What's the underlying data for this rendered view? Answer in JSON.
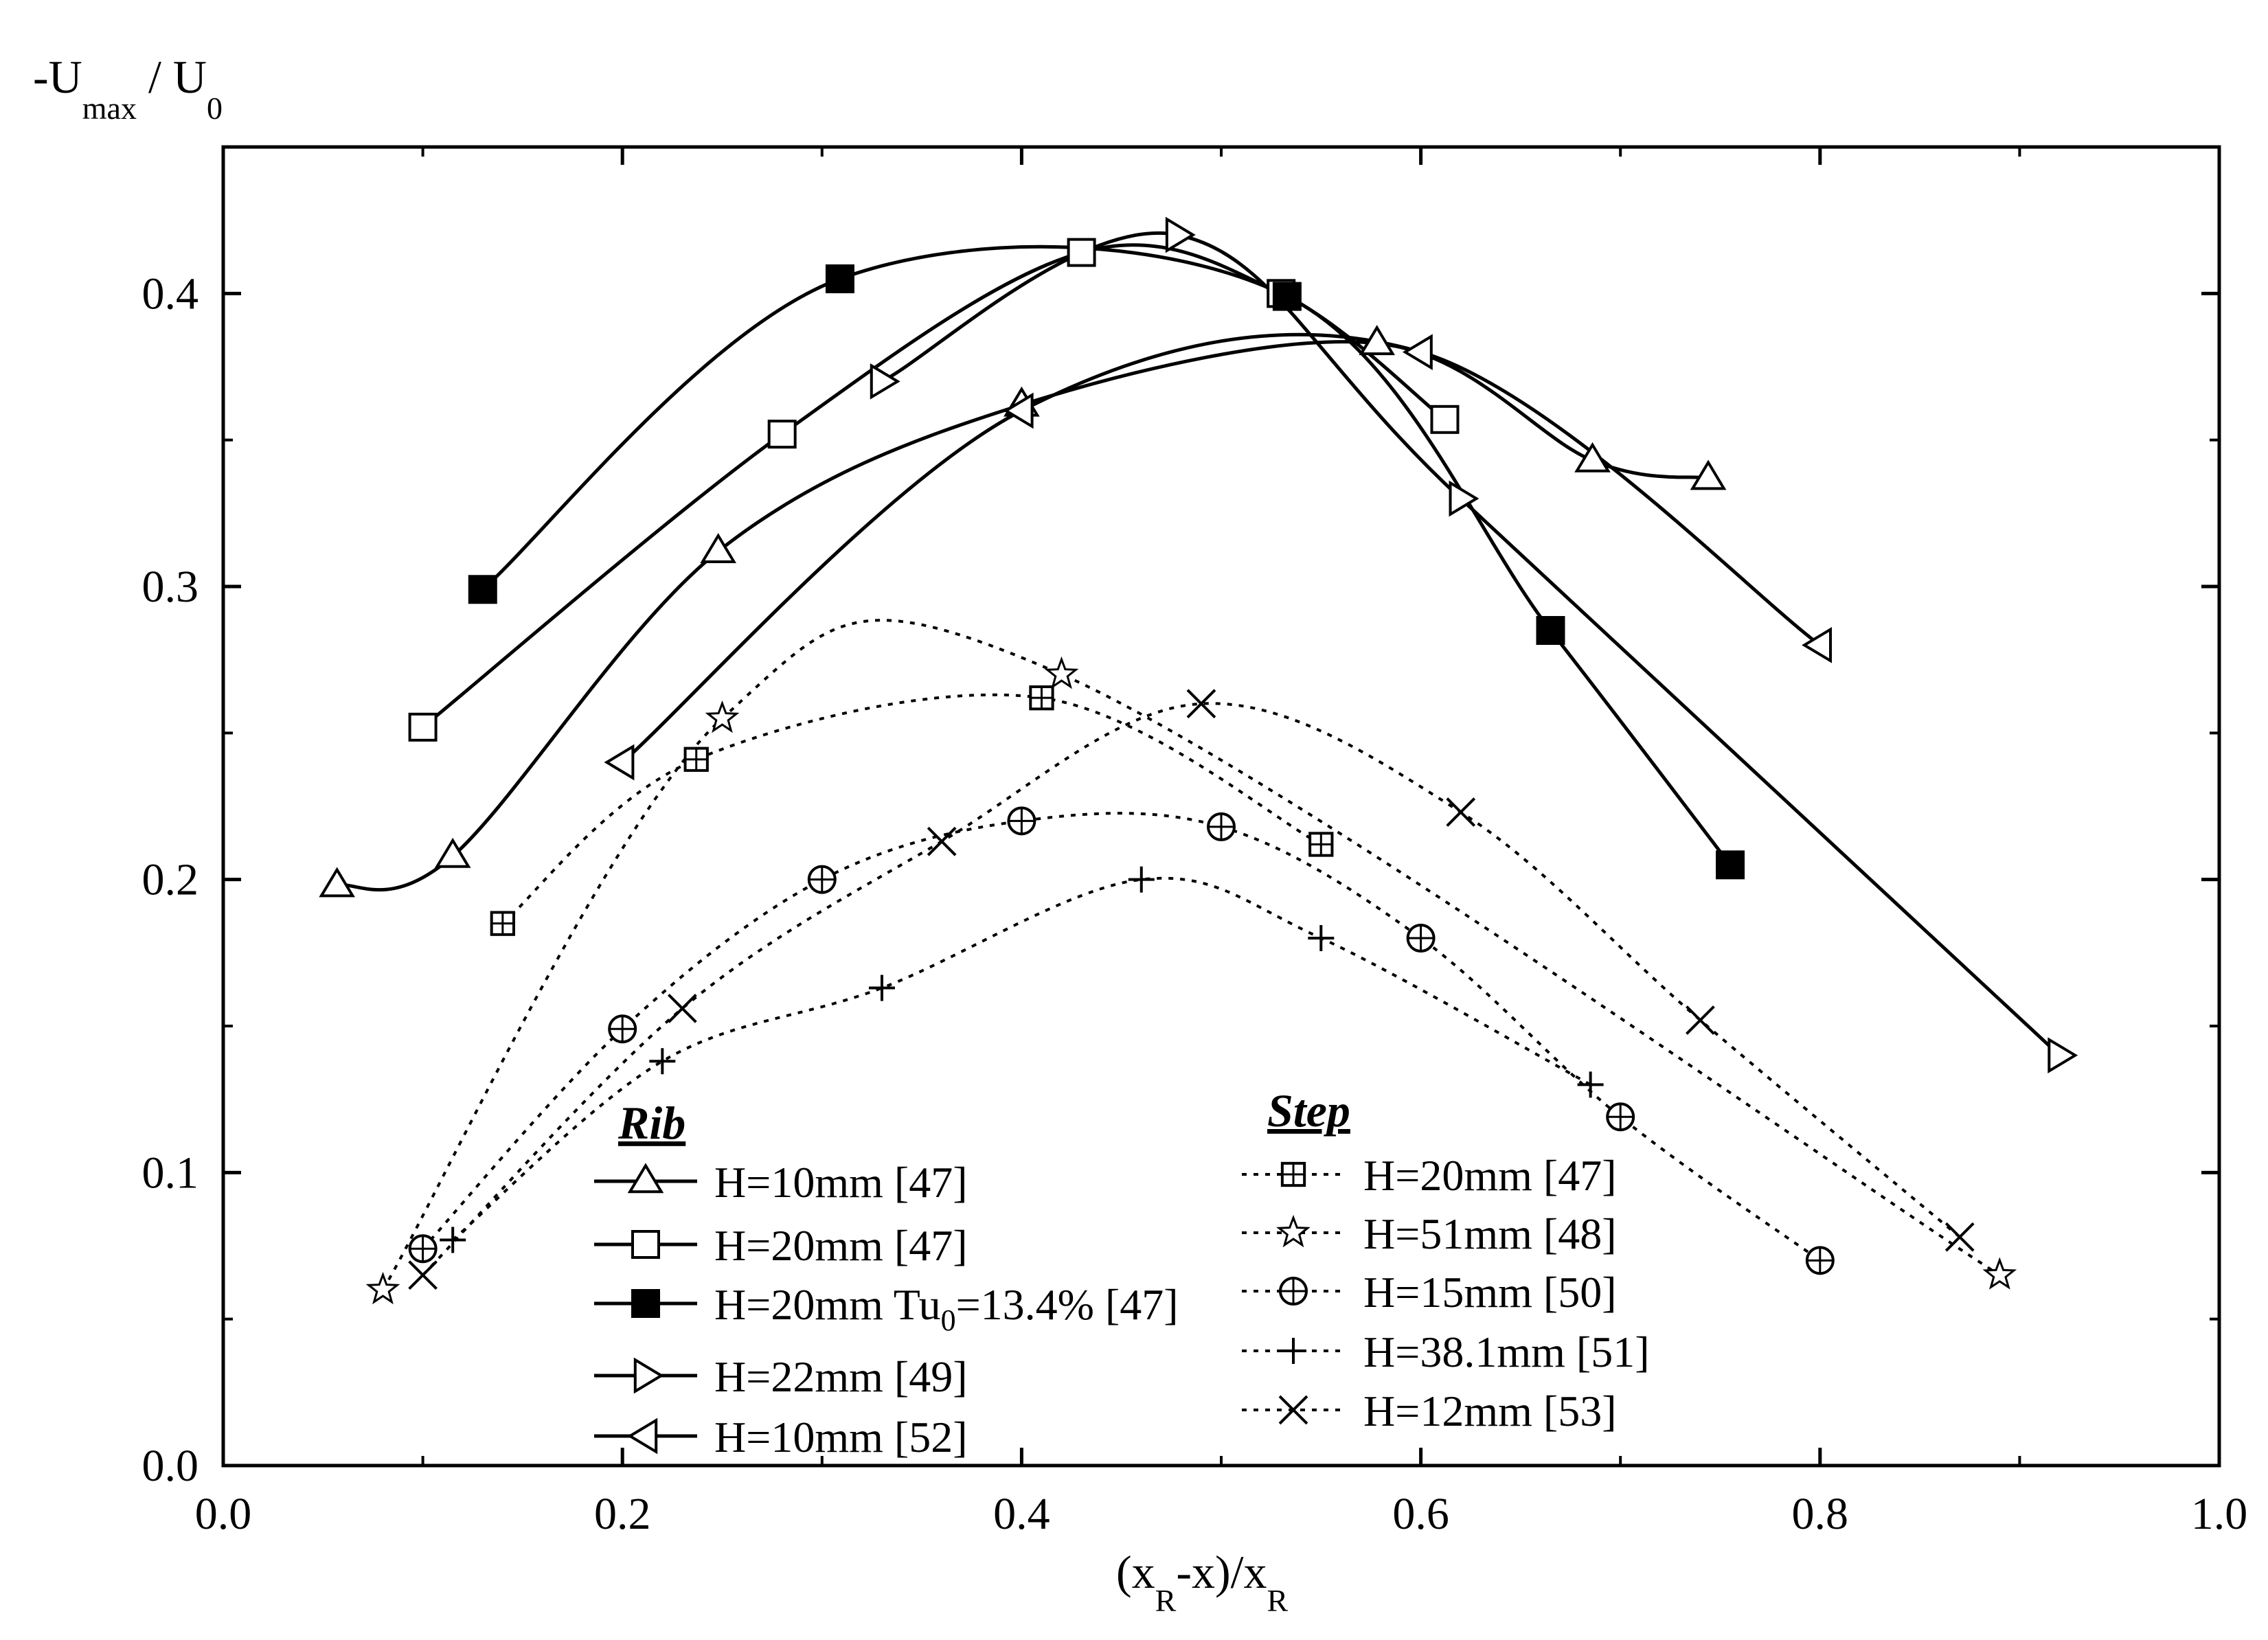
{
  "chart_data": {
    "type": "line",
    "title": "",
    "ylabel": {
      "prefix": "-U",
      "sub1": "max",
      "mid": " / U",
      "sub2": "0"
    },
    "xlabel": {
      "p1": "(x",
      "sub1": "R",
      "p2": "-x)/x",
      "sub2": "R"
    },
    "xlim": [
      0.0,
      1.0
    ],
    "ylim": [
      0.0,
      0.45
    ],
    "xticks": [
      "0.0",
      "0.2",
      "0.4",
      "0.6",
      "0.8",
      "1.0"
    ],
    "yticks": [
      "0.0",
      "0.1",
      "0.2",
      "0.3",
      "0.4"
    ],
    "grid": false,
    "legend_groups": [
      {
        "title": "Rib",
        "placement": "bottom-left"
      },
      {
        "title": "Step",
        "placement": "bottom-center"
      }
    ],
    "series": [
      {
        "name": "H=10mm [47]",
        "group": "Rib",
        "marker": "triangle-up",
        "style": "solid",
        "x": [
          0.057,
          0.115,
          0.248,
          0.4,
          0.578,
          0.686,
          0.744
        ],
        "y": [
          0.198,
          0.208,
          0.312,
          0.362,
          0.383,
          0.343,
          0.337
        ]
      },
      {
        "name": "H=20mm [47]",
        "group": "Rib",
        "marker": "square",
        "style": "solid",
        "x": [
          0.1,
          0.28,
          0.43,
          0.53,
          0.612
        ],
        "y": [
          0.252,
          0.352,
          0.414,
          0.4,
          0.357
        ]
      },
      {
        "name": "H=20mm Tu",
        "name_sub": "0",
        "name_tail": "=13.4% [47]",
        "group": "Rib",
        "marker": "filled-square",
        "style": "solid",
        "x": [
          0.13,
          0.309,
          0.533,
          0.665,
          0.755
        ],
        "y": [
          0.299,
          0.405,
          0.399,
          0.285,
          0.205
        ]
      },
      {
        "name": "H=22mm [49]",
        "group": "Rib",
        "marker": "triangle-right",
        "style": "solid",
        "x": [
          0.33,
          0.478,
          0.62,
          0.92
        ],
        "y": [
          0.37,
          0.42,
          0.33,
          0.14
        ]
      },
      {
        "name": "H=10mm [52]",
        "group": "Rib",
        "marker": "triangle-left",
        "style": "solid",
        "x": [
          0.2,
          0.4,
          0.6,
          0.8
        ],
        "y": [
          0.24,
          0.36,
          0.38,
          0.28
        ]
      },
      {
        "name": "H=20mm [47]",
        "group": "Step",
        "marker": "square-plus",
        "style": "dotted",
        "x": [
          0.14,
          0.237,
          0.41,
          0.55
        ],
        "y": [
          0.185,
          0.241,
          0.262,
          0.212
        ]
      },
      {
        "name": "H=51mm [48]",
        "group": "Step",
        "marker": "star",
        "style": "dotted",
        "x": [
          0.08,
          0.25,
          0.42,
          0.89
        ],
        "y": [
          0.06,
          0.255,
          0.27,
          0.065
        ]
      },
      {
        "name": "H=15mm [50]",
        "group": "Step",
        "marker": "circle-plus",
        "style": "dotted",
        "x": [
          0.1,
          0.2,
          0.3,
          0.4,
          0.5,
          0.6,
          0.7,
          0.8
        ],
        "y": [
          0.074,
          0.149,
          0.2,
          0.22,
          0.218,
          0.18,
          0.119,
          0.07
        ]
      },
      {
        "name": "H=38.1mm [51]",
        "group": "Step",
        "marker": "plus",
        "style": "dotted",
        "x": [
          0.115,
          0.22,
          0.33,
          0.46,
          0.55,
          0.685
        ],
        "y": [
          0.077,
          0.138,
          0.163,
          0.2,
          0.18,
          0.13
        ]
      },
      {
        "name": "H=12mm [53]",
        "group": "Step",
        "marker": "x",
        "style": "dotted",
        "x": [
          0.1,
          0.23,
          0.36,
          0.49,
          0.62,
          0.74,
          0.87
        ],
        "y": [
          0.065,
          0.156,
          0.213,
          0.26,
          0.223,
          0.152,
          0.078
        ]
      }
    ]
  }
}
